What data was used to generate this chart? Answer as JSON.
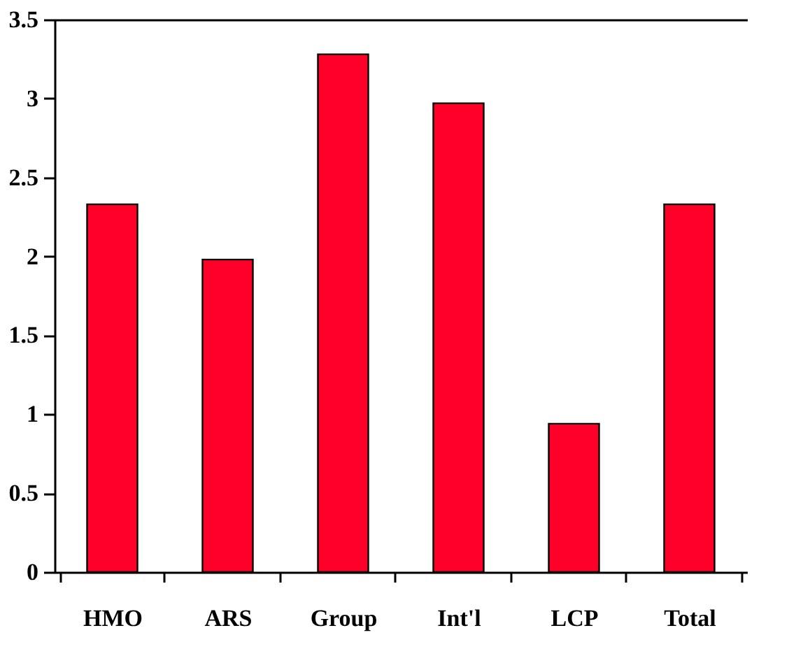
{
  "chart_data": {
    "type": "bar",
    "categories": [
      "HMO",
      "ARS",
      "Group",
      "Int'l",
      "LCP",
      "Total"
    ],
    "values": [
      2.33,
      1.98,
      3.28,
      2.97,
      0.94,
      2.33
    ],
    "color": "#ff0028",
    "ylim": [
      0,
      3.5
    ],
    "yticks": [
      0,
      0.5,
      1,
      1.5,
      2,
      2.5,
      3,
      3.5
    ],
    "grid": false
  }
}
